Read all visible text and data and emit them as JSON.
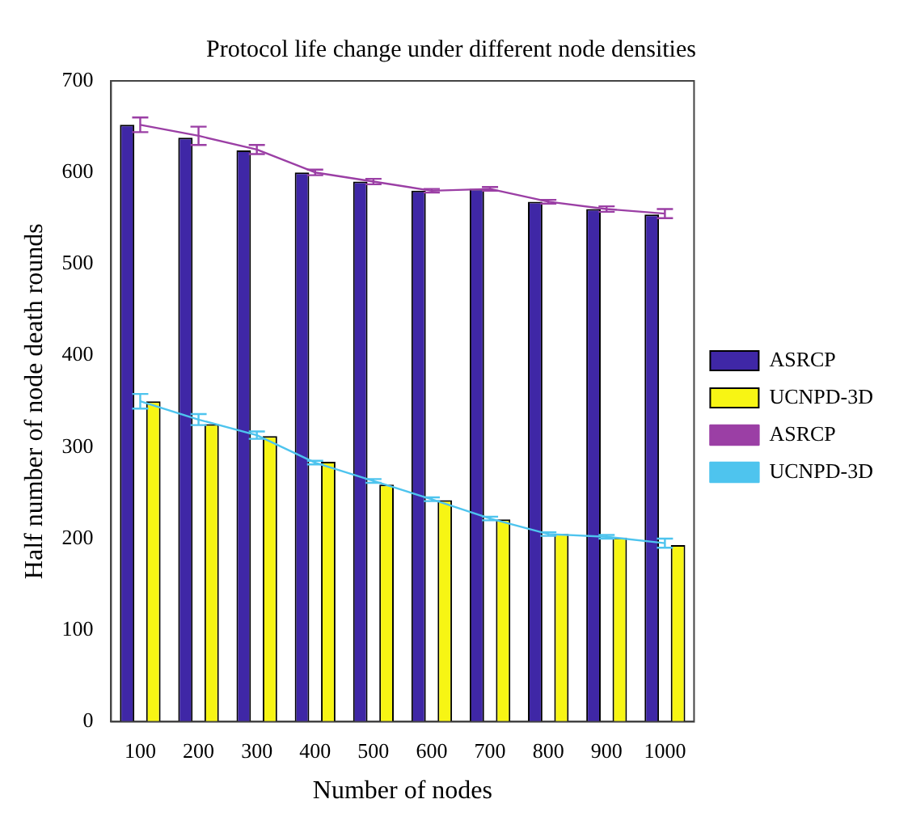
{
  "chart_data": {
    "type": "bar",
    "title": "Protocol life change under different node densities",
    "xlabel": "Number of nodes",
    "ylabel": "Half number of node death rounds",
    "categories": [
      "100",
      "200",
      "300",
      "400",
      "500",
      "600",
      "700",
      "800",
      "900",
      "1000"
    ],
    "series": [
      {
        "name": "ASRCP",
        "color": "#3f27a6",
        "values": [
          652,
          638,
          624,
          600,
          590,
          580,
          582,
          568,
          560,
          554
        ]
      },
      {
        "name": "UCNPD-3D",
        "color": "#f7f514",
        "values": [
          350,
          325,
          312,
          284,
          259,
          242,
          221,
          205,
          201,
          193
        ]
      },
      {
        "name": "ASRCP",
        "type": "line",
        "color": "#9b3fa5",
        "values": [
          652,
          640,
          625,
          600,
          590,
          580,
          582,
          568,
          560,
          555
        ],
        "errors": [
          8,
          10,
          5,
          3,
          3,
          2,
          2,
          2,
          3,
          5
        ]
      },
      {
        "name": "UCNPD-3D",
        "type": "line",
        "color": "#4ec4ee",
        "values": [
          350,
          330,
          313,
          283,
          263,
          243,
          222,
          205,
          202,
          195
        ],
        "errors": [
          8,
          6,
          4,
          2,
          2,
          2,
          2,
          2,
          2,
          5
        ]
      }
    ],
    "ylim": [
      0,
      700
    ],
    "yticks": [
      0,
      100,
      200,
      300,
      400,
      500,
      600,
      700
    ],
    "grid": false,
    "legend": "right",
    "marker": "none",
    "line_style": "solid"
  }
}
